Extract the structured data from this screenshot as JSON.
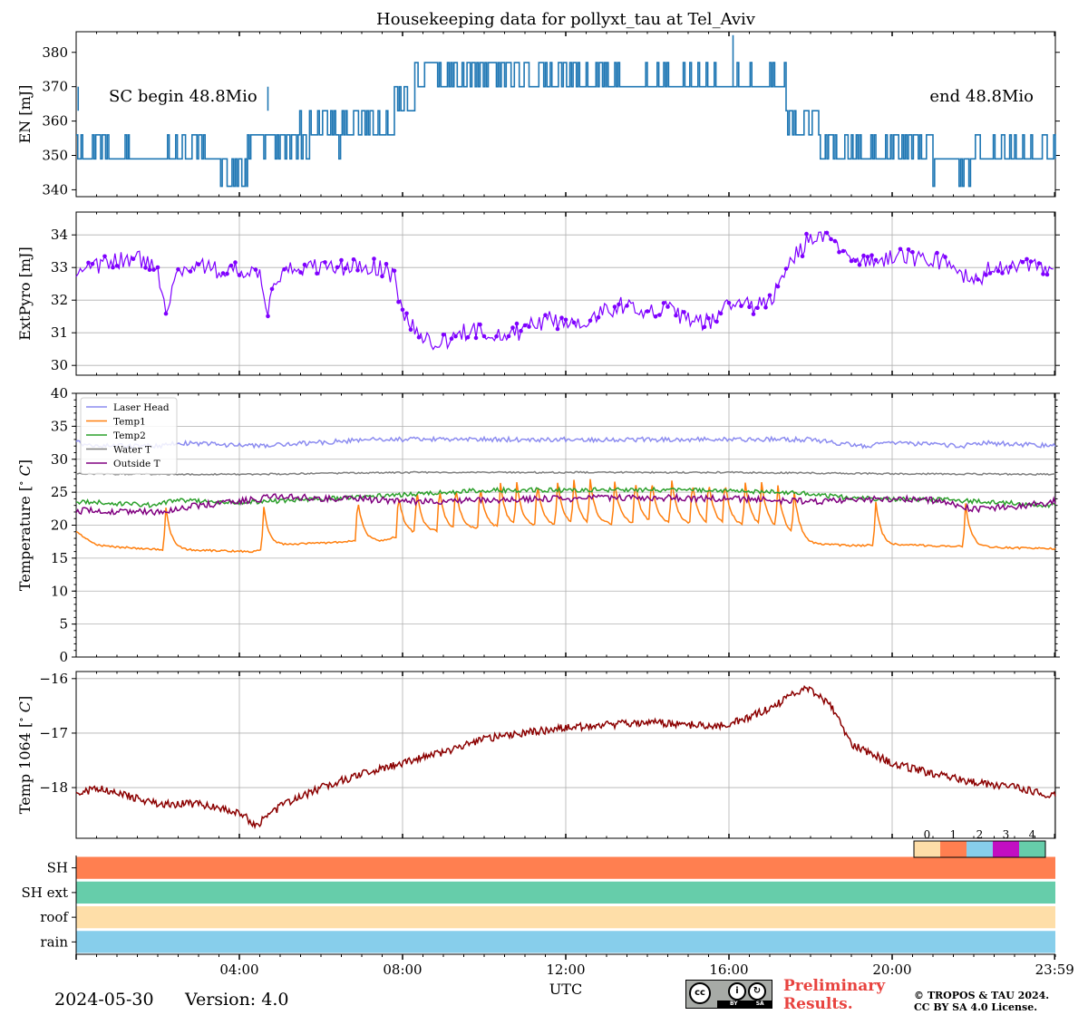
{
  "title": "Housekeeping data for pollyxt_tau at Tel_Aviv",
  "x_axis": {
    "label": "UTC",
    "range_hours": [
      0,
      24
    ],
    "ticks": [
      {
        "h": 4,
        "label": "04:00"
      },
      {
        "h": 8,
        "label": "08:00"
      },
      {
        "h": 12,
        "label": "12:00"
      },
      {
        "h": 16,
        "label": "16:00"
      },
      {
        "h": 20,
        "label": "20:00"
      },
      {
        "h": 23.983,
        "label": "23:59"
      }
    ]
  },
  "chart_data": [
    {
      "type": "line",
      "id": "energy",
      "ylabel": "EN [mJ]",
      "ylim": [
        338,
        386
      ],
      "yticks": [
        340,
        350,
        360,
        370,
        380
      ],
      "grid": false,
      "color": "#1f77b4",
      "annotations": {
        "left": "SC begin 48.8Mio",
        "right": "end 48.8Mio"
      },
      "levels": [
        341,
        349,
        356,
        363,
        370,
        377,
        385
      ],
      "segments": [
        {
          "x": [
            0,
            1.3
          ],
          "base": 349,
          "alt": [
            356
          ],
          "p": 0.45
        },
        {
          "x": [
            1.3,
            2.2
          ],
          "base": 349,
          "alt": [
            341
          ],
          "p": 0.02
        },
        {
          "x": [
            2.2,
            3.2
          ],
          "base": 349,
          "alt": [
            356
          ],
          "p": 0.5
        },
        {
          "x": [
            3.5,
            4.2
          ],
          "base": 349,
          "alt": [
            341
          ],
          "p": 0.5
        },
        {
          "x": [
            4.2,
            6.8
          ],
          "base": 356,
          "alt": [
            349,
            363
          ],
          "p": 0.35
        },
        {
          "x": [
            6.8,
            7.8
          ],
          "base": 356,
          "alt": [
            363
          ],
          "p": 0.4
        },
        {
          "x": [
            7.8,
            8.3
          ],
          "base": 363,
          "alt": [
            370
          ],
          "p": 0.3
        },
        {
          "x": [
            8.3,
            13.0
          ],
          "base": 370,
          "alt": [
            377
          ],
          "p": 0.55
        },
        {
          "x": [
            13.0,
            17.4
          ],
          "base": 370,
          "alt": [
            377
          ],
          "p": 0.15
        },
        {
          "x": [
            17.4,
            18.2
          ],
          "base": 363,
          "alt": [
            356
          ],
          "p": 0.4
        },
        {
          "x": [
            18.2,
            21.0
          ],
          "base": 349,
          "alt": [
            356
          ],
          "p": 0.55
        },
        {
          "x": [
            21.0,
            22.0
          ],
          "base": 349,
          "alt": [
            341
          ],
          "p": 0.15
        },
        {
          "x": [
            22.0,
            24.0
          ],
          "base": 349,
          "alt": [
            356
          ],
          "p": 0.25
        }
      ],
      "spikes": [
        {
          "x": 16.1,
          "y": 385
        },
        {
          "x": 0.05,
          "y": 363
        },
        {
          "x": 4.7,
          "y": 363
        }
      ]
    },
    {
      "type": "line",
      "id": "extpyro",
      "ylabel": "ExtPyro [mJ]",
      "ylim": [
        29.7,
        34.7
      ],
      "yticks": [
        30,
        31,
        32,
        33,
        34
      ],
      "grid": true,
      "markers": true,
      "color": "#7f00ff",
      "x": [
        0,
        0.5,
        1,
        1.5,
        2,
        2.2,
        2.5,
        3,
        3.5,
        4,
        4.5,
        4.7,
        5,
        5.5,
        6,
        6.5,
        7,
        7.5,
        7.8,
        8.0,
        8.5,
        9,
        9.5,
        10,
        10.5,
        11,
        11.5,
        12,
        12.5,
        13,
        13.5,
        14,
        14.5,
        15,
        15.5,
        16,
        16.5,
        17,
        17.5,
        18,
        18.5,
        19,
        19.5,
        20,
        20.5,
        21,
        21.5,
        22,
        22.5,
        23,
        23.5,
        24
      ],
      "y": [
        32.7,
        33.0,
        33.2,
        33.3,
        32.9,
        31.8,
        32.9,
        33.1,
        32.9,
        32.9,
        32.7,
        31.7,
        32.8,
        33.0,
        33.0,
        33.0,
        33.0,
        33.0,
        32.7,
        31.6,
        30.8,
        30.7,
        31.0,
        31.1,
        30.9,
        31.1,
        31.4,
        31.3,
        31.4,
        31.7,
        31.9,
        31.7,
        31.7,
        31.4,
        31.3,
        31.9,
        31.8,
        31.9,
        33.2,
        33.9,
        33.8,
        33.4,
        33.1,
        33.4,
        33.3,
        33.3,
        33.0,
        32.5,
        33.1,
        33.0,
        33.0,
        32.8
      ],
      "noise": 0.28
    },
    {
      "type": "line",
      "id": "temperatures",
      "ylabel": "Temperature [$^\\circ C$]",
      "ylim": [
        0,
        40
      ],
      "yticks": [
        0,
        5,
        10,
        15,
        20,
        25,
        30,
        35,
        40
      ],
      "grid": true,
      "legend": "top-left",
      "series": [
        {
          "name": "Laser Head",
          "color": "#8c8cf0",
          "x": [
            0,
            0.2,
            2.0,
            2.5,
            4.5,
            7.2,
            18.0,
            18.6,
            19.3,
            20.0,
            21.7,
            22.2,
            24
          ],
          "y": [
            33,
            32,
            32,
            32.5,
            32,
            33,
            33,
            32.5,
            32,
            32.5,
            32,
            32.5,
            32
          ],
          "noise": 0.35
        },
        {
          "name": "Temp1",
          "color": "#ff7f0e",
          "x": [
            0,
            0.5,
            1,
            2.1,
            3,
            4.2,
            4.5,
            5,
            7.0,
            7.5,
            8.0,
            9.5,
            11,
            12.5,
            14,
            15.5,
            17,
            17.5,
            18,
            19,
            20.2,
            21.5,
            24
          ],
          "y": [
            19,
            17,
            16.7,
            16.3,
            16.2,
            16.0,
            16.1,
            17.0,
            17.6,
            17.6,
            18.5,
            19.4,
            19.8,
            20.0,
            20.3,
            20.1,
            19.8,
            18.5,
            17.2,
            16.9,
            17.0,
            16.8,
            16.4
          ],
          "noise": 0.15,
          "spikes": [
            2.2,
            4.6,
            6.9,
            7.9,
            8.35,
            8.9,
            9.3,
            9.9,
            10.4,
            10.8,
            11.3,
            11.8,
            12.2,
            12.6,
            13.2,
            13.7,
            14.1,
            14.6,
            15.1,
            15.5,
            15.9,
            16.4,
            16.8,
            17.2,
            17.6,
            19.6,
            21.8
          ],
          "spikeHeight": 6.5
        },
        {
          "name": "Temp2",
          "color": "#2ca02c",
          "x": [
            0,
            2,
            2.3,
            4,
            6,
            8,
            10,
            12,
            14,
            16,
            17.5,
            19,
            20,
            21.5,
            24
          ],
          "y": [
            23.6,
            23.0,
            23.8,
            23.4,
            24.0,
            24.6,
            25.3,
            25.3,
            25.4,
            25.2,
            25.0,
            24.1,
            24.0,
            23.8,
            23.0
          ],
          "noise": 0.35
        },
        {
          "name": "Water T",
          "color": "#7f7f7f",
          "x": [
            0,
            4,
            8,
            12,
            16,
            20,
            24
          ],
          "y": [
            27.8,
            27.7,
            28.0,
            28.0,
            28.0,
            27.8,
            27.7
          ],
          "noise": 0.12
        },
        {
          "name": "Outside T",
          "color": "#800080",
          "x": [
            0,
            2,
            3,
            4,
            5,
            6,
            7,
            8,
            10,
            12,
            14,
            16,
            18,
            20,
            21,
            22,
            23,
            24
          ],
          "y": [
            22.2,
            22.0,
            23.0,
            23.6,
            24.4,
            24.0,
            24.0,
            23.6,
            23.8,
            24.0,
            24.2,
            24.0,
            23.6,
            24.0,
            23.8,
            22.4,
            22.8,
            23.6
          ],
          "noise": 0.5
        }
      ]
    },
    {
      "type": "line",
      "id": "temp1064",
      "ylabel": "Temp 1064 [$^\\circ C$]",
      "ylim": [
        -18.93,
        -15.87
      ],
      "yticks": [
        -16,
        -17,
        -18
      ],
      "grid": true,
      "color": "#8b0000",
      "x": [
        0,
        0.5,
        1,
        2,
        3,
        4,
        4.4,
        5,
        6,
        7,
        8,
        9,
        10,
        11,
        12,
        13,
        14,
        15,
        16,
        17,
        17.9,
        18.5,
        19,
        20,
        21,
        22,
        23,
        24
      ],
      "y": [
        -18.15,
        -18.0,
        -18.1,
        -18.3,
        -18.3,
        -18.45,
        -18.7,
        -18.35,
        -18.0,
        -17.75,
        -17.55,
        -17.35,
        -17.1,
        -17.0,
        -16.9,
        -16.85,
        -16.8,
        -16.85,
        -16.85,
        -16.55,
        -16.15,
        -16.5,
        -17.2,
        -17.55,
        -17.75,
        -17.9,
        -18.0,
        -18.15
      ],
      "noise": 0.07
    },
    {
      "type": "heatmap",
      "id": "status",
      "rows": [
        {
          "label": "SH",
          "value": 1
        },
        {
          "label": "SH ext",
          "value": 4
        },
        {
          "label": "roof",
          "value": 0
        },
        {
          "label": "rain",
          "value": 2
        }
      ],
      "colorbar": [
        {
          "value": "0",
          "color": "#fedea8"
        },
        {
          "value": "1",
          "color": "#ff7f50"
        },
        {
          "value": "2",
          "color": "#87ceeb"
        },
        {
          "value": "3",
          "color": "#c20ec2"
        },
        {
          "value": "4",
          "color": "#66cdaa"
        }
      ]
    }
  ],
  "footer": {
    "date": "2024-05-30",
    "version": "Version: 4.0",
    "license_badge": {
      "cc": "cc",
      "by": "BY",
      "sa": "SA"
    },
    "preliminary": "Preliminary Results.",
    "copyright_line1": "© TROPOS & TAU 2024.",
    "copyright_line2": "CC BY SA 4.0 License."
  }
}
